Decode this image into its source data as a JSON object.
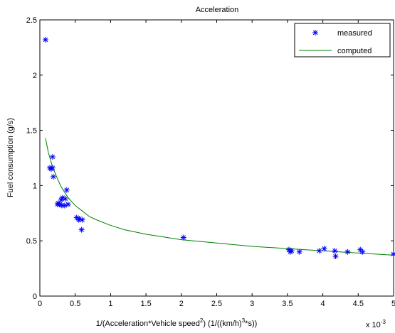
{
  "chart_data": {
    "type": "scatter",
    "title": "Acceleration",
    "xlabel_main": "1/(Acceleration*Vehicle speed",
    "xlabel_sup": "2",
    "xlabel_mid": ") (1/((km/h)",
    "xlabel_sup2": "3",
    "xlabel_end": "*s))",
    "ylabel": "Fuel consumption (g/s)",
    "x_multiplier_base": "x 10",
    "x_multiplier_exp": "-3",
    "xlim": [
      0,
      5
    ],
    "ylim": [
      0,
      2.5
    ],
    "x_ticks": [
      0,
      0.5,
      1,
      1.5,
      2,
      2.5,
      3,
      3.5,
      4,
      4.5,
      5
    ],
    "x_tick_labels": [
      "0",
      "0.5",
      "1",
      "1.5",
      "2",
      "2.5",
      "3",
      "3.5",
      "4",
      "4.5",
      "5"
    ],
    "y_ticks": [
      0,
      0.5,
      1,
      1.5,
      2,
      2.5
    ],
    "y_tick_labels": [
      "0",
      "0.5",
      "1",
      "1.5",
      "2",
      "2.5"
    ],
    "grid": false,
    "legend_position": "top-right",
    "series": [
      {
        "name": "measured",
        "marker": "asterisk",
        "color": "#0000ff",
        "points": [
          [
            0.08,
            2.32
          ],
          [
            0.18,
            1.26
          ],
          [
            0.14,
            1.16
          ],
          [
            0.18,
            1.16
          ],
          [
            0.16,
            1.15
          ],
          [
            0.19,
            1.08
          ],
          [
            0.38,
            0.96
          ],
          [
            0.32,
            0.89
          ],
          [
            0.36,
            0.88
          ],
          [
            0.3,
            0.87
          ],
          [
            0.26,
            0.84
          ],
          [
            0.28,
            0.83
          ],
          [
            0.25,
            0.83
          ],
          [
            0.31,
            0.82
          ],
          [
            0.35,
            0.82
          ],
          [
            0.4,
            0.83
          ],
          [
            0.52,
            0.71
          ],
          [
            0.56,
            0.7
          ],
          [
            0.6,
            0.69
          ],
          [
            0.55,
            0.69
          ],
          [
            0.59,
            0.6
          ],
          [
            2.03,
            0.53
          ],
          [
            3.52,
            0.42
          ],
          [
            3.54,
            0.4
          ],
          [
            3.56,
            0.41
          ],
          [
            3.67,
            0.4
          ],
          [
            3.95,
            0.41
          ],
          [
            4.02,
            0.43
          ],
          [
            4.17,
            0.41
          ],
          [
            4.18,
            0.36
          ],
          [
            4.35,
            0.4
          ],
          [
            4.53,
            0.42
          ],
          [
            4.56,
            0.4
          ],
          [
            5.0,
            0.38
          ]
        ]
      },
      {
        "name": "computed",
        "marker": "line",
        "color": "#008000",
        "points": [
          [
            0.08,
            1.43
          ],
          [
            0.12,
            1.3
          ],
          [
            0.18,
            1.17
          ],
          [
            0.25,
            1.06
          ],
          [
            0.3,
            0.99
          ],
          [
            0.4,
            0.89
          ],
          [
            0.5,
            0.82
          ],
          [
            0.6,
            0.77
          ],
          [
            0.7,
            0.72
          ],
          [
            0.8,
            0.69
          ],
          [
            1.0,
            0.64
          ],
          [
            1.2,
            0.6
          ],
          [
            1.5,
            0.56
          ],
          [
            2.0,
            0.51
          ],
          [
            2.5,
            0.48
          ],
          [
            3.0,
            0.45
          ],
          [
            3.5,
            0.43
          ],
          [
            4.0,
            0.41
          ],
          [
            4.5,
            0.39
          ],
          [
            5.0,
            0.37
          ]
        ]
      }
    ]
  }
}
